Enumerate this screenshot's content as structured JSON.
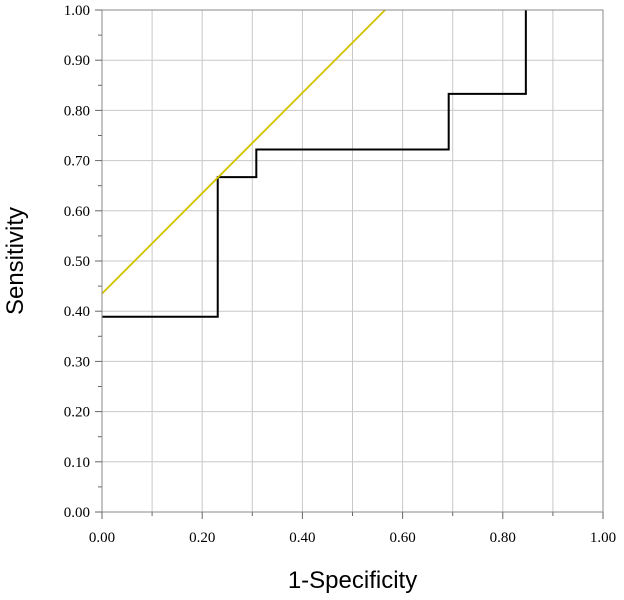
{
  "chart_data": {
    "type": "line",
    "title": "",
    "xlabel": "1-Specificity",
    "ylabel": "Sensitivity",
    "xlim": [
      0,
      1
    ],
    "ylim": [
      0,
      1
    ],
    "grid": true,
    "xticks": [
      "0.00",
      "0.20",
      "0.40",
      "0.60",
      "0.80",
      "1.00"
    ],
    "yticks": [
      "0.00",
      "0.10",
      "0.20",
      "0.30",
      "0.40",
      "0.50",
      "0.60",
      "0.70",
      "0.80",
      "0.90",
      "1.00"
    ],
    "series": [
      {
        "kind": "roc-step",
        "color": "#000000",
        "x": [
          0.0,
          0.231,
          0.231,
          0.308,
          0.308,
          0.692,
          0.692,
          0.846,
          0.846
        ],
        "y": [
          0.389,
          0.389,
          0.667,
          0.667,
          0.722,
          0.722,
          0.833,
          0.833,
          1.0
        ]
      },
      {
        "kind": "reference-line",
        "color": "#d4c200",
        "x": [
          0.0,
          0.565
        ],
        "y": [
          0.435,
          1.0
        ]
      }
    ]
  }
}
